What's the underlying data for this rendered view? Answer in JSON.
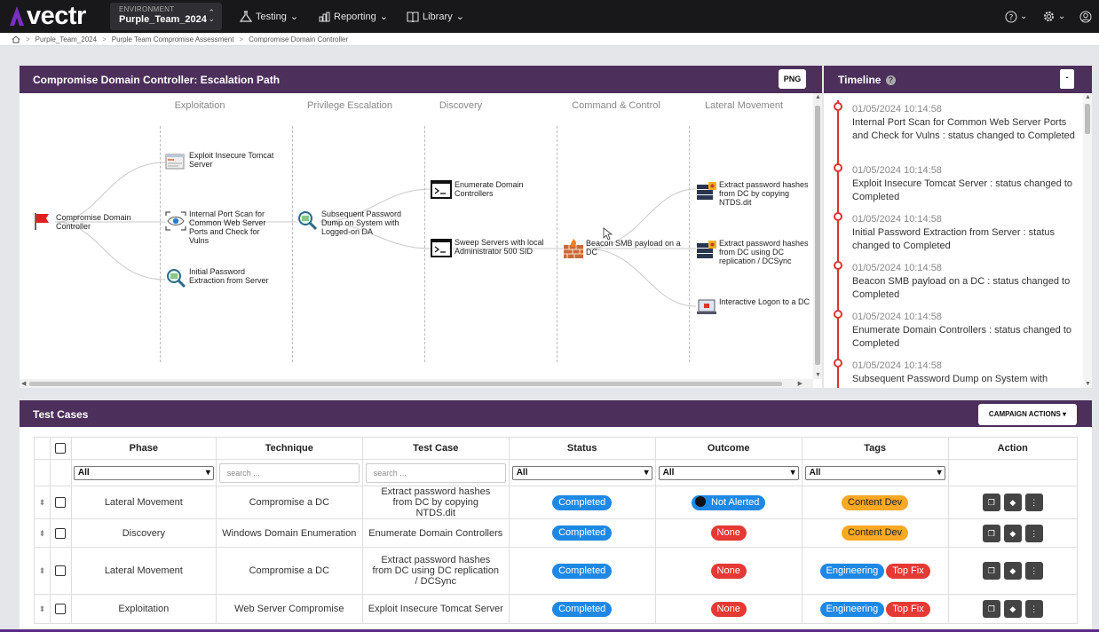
{
  "app": {
    "name": "vectr",
    "brand_color": "#7b2fbe"
  },
  "env": {
    "label": "ENVIRONMENT",
    "value": "Purple_Team_2024"
  },
  "nav": {
    "testing": "Testing",
    "reporting": "Reporting",
    "library": "Library"
  },
  "breadcrumb": [
    "Purple_Team_2024",
    "Purple Team Compromise Assessment",
    "Compromise Domain Controller"
  ],
  "graph": {
    "title": "Compromise Domain Controller: Escalation Path",
    "png_label": "PNG",
    "columns": [
      "Exploitation",
      "Privilege Escalation",
      "Discovery",
      "Command & Control",
      "Lateral Movement"
    ],
    "nodes": {
      "root": "Compromise Domain Controller",
      "tomcat": "Exploit Insecure Tomcat Server",
      "portscan": "Internal Port Scan for Common Web Server Ports and Check for Vulns",
      "pwextract": "Initial Password Extraction from Server",
      "pwdump": "Subsequent Password Dump on System with Logged-on DA",
      "enumdc": "Enumerate Domain Controllers",
      "sweep": "Sweep Servers with local Administrator 500 SID",
      "beacon": "Beacon SMB payload on a DC",
      "ntds": "Extract password hashes from DC by copying NTDS.dit",
      "dcsync": "Extract password hashes from DC using DC replication / DCSync",
      "logon": "Interactive Logon to a DC"
    }
  },
  "timeline": {
    "title": "Timeline",
    "collapse_label": "-",
    "items": [
      {
        "date": "01/05/2024 10:14:58",
        "text": "Internal Port Scan for Common Web Server Ports and Check for Vulns : status changed to Completed"
      },
      {
        "date": "01/05/2024 10:14:58",
        "text": "Exploit Insecure Tomcat Server : status changed to Completed"
      },
      {
        "date": "01/05/2024 10:14:58",
        "text": "Initial Password Extraction from Server : status changed to Completed"
      },
      {
        "date": "01/05/2024 10:14:58",
        "text": "Beacon SMB payload on a DC : status changed to Completed"
      },
      {
        "date": "01/05/2024 10:14:58",
        "text": "Enumerate Domain Controllers : status changed to Completed"
      },
      {
        "date": "01/05/2024 10:14:58",
        "text": "Subsequent Password Dump on System with"
      }
    ]
  },
  "testcases": {
    "title": "Test Cases",
    "actions_label": "CAMPAIGN ACTIONS",
    "columns": [
      "Phase",
      "Technique",
      "Test Case",
      "Status",
      "Outcome",
      "Tags",
      "Action"
    ],
    "filters": {
      "all": "All",
      "search": "search ..."
    },
    "rows": [
      {
        "phase": "Lateral Movement",
        "technique": "Compromise a DC",
        "testcase": "Extract password hashes from DC by copying NTDS.dit",
        "status": "Completed",
        "outcome": "Not Alerted",
        "tags": [
          "Content Dev"
        ]
      },
      {
        "phase": "Discovery",
        "technique": "Windows Domain Enumeration",
        "testcase": "Enumerate Domain Controllers",
        "status": "Completed",
        "outcome": "None",
        "tags": [
          "Content Dev"
        ]
      },
      {
        "phase": "Lateral Movement",
        "technique": "Compromise a DC",
        "testcase": "Extract password hashes from DC using DC replication / DCSync",
        "status": "Completed",
        "outcome": "None",
        "tags": [
          "Engineering",
          "Top Fix"
        ]
      },
      {
        "phase": "Exploitation",
        "technique": "Web Server Compromise",
        "testcase": "Exploit Insecure Tomcat Server",
        "status": "Completed",
        "outcome": "None",
        "tags": [
          "Engineering",
          "Top Fix"
        ]
      }
    ]
  },
  "colors": {
    "header_purple": "#4c2f5b",
    "status_blue": "#1e88e5",
    "outcome_red": "#e53935",
    "tag_orange": "#f9a825"
  }
}
